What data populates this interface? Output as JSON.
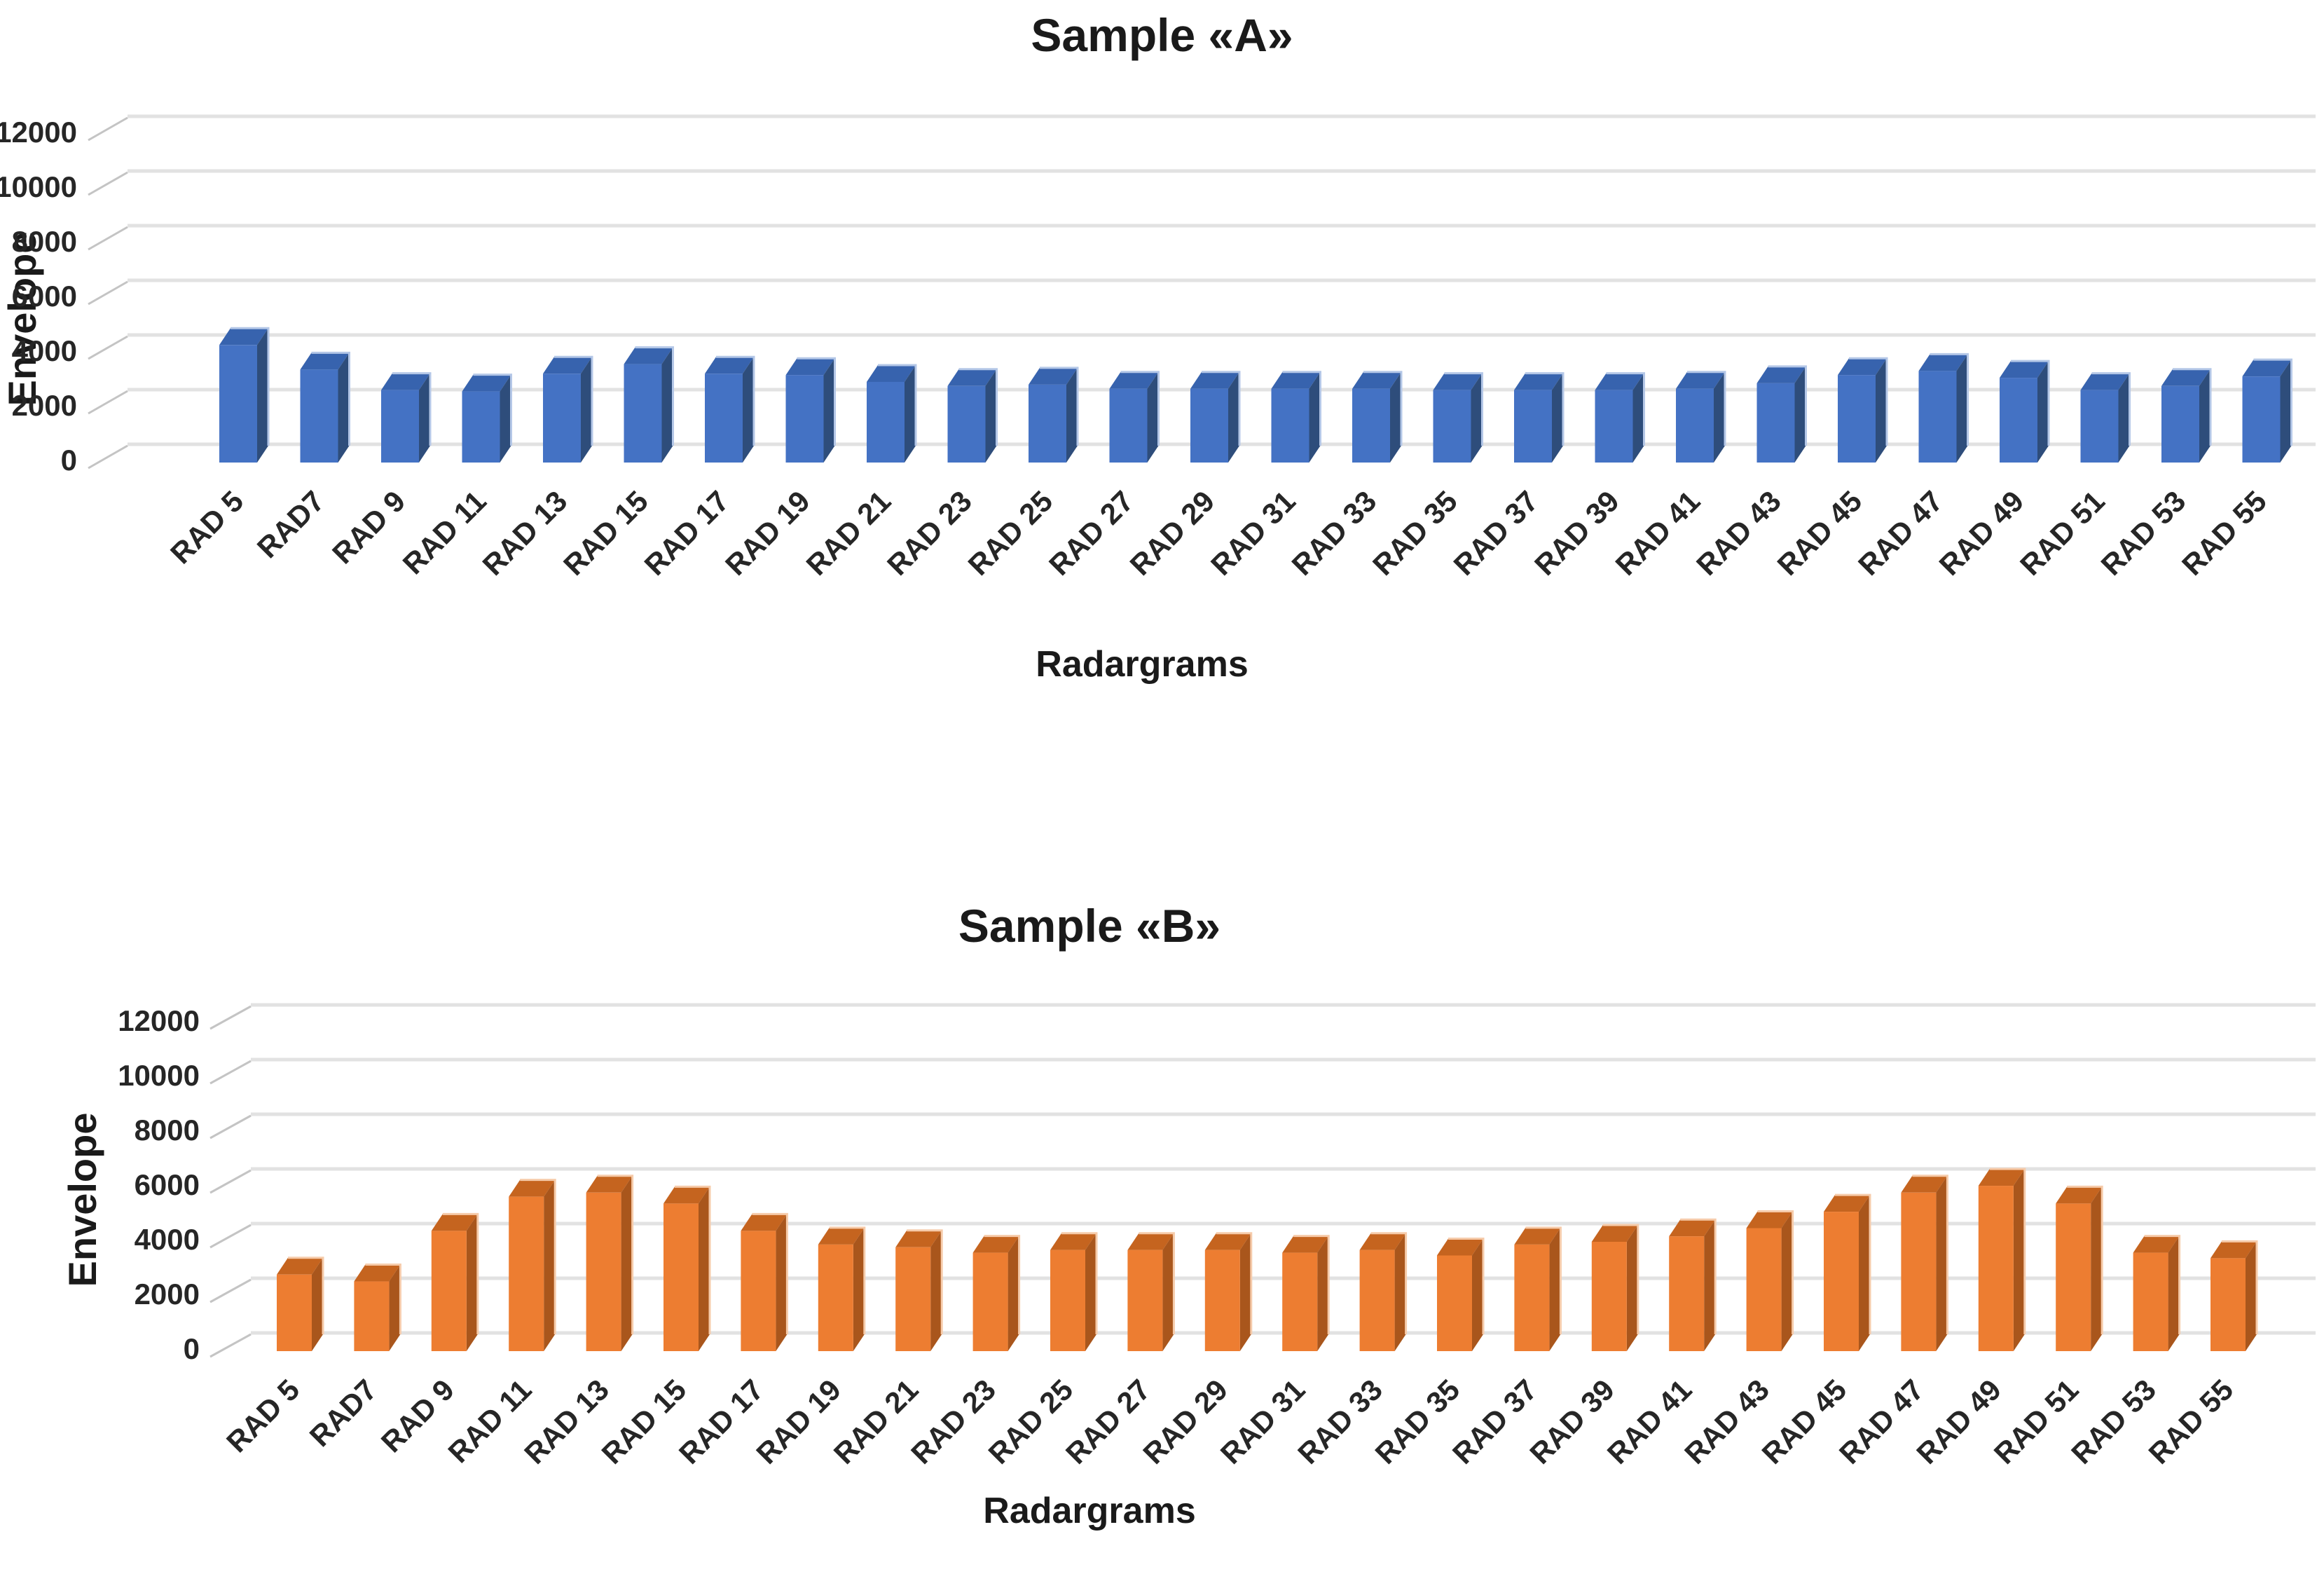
{
  "page": {
    "background": "#ffffff"
  },
  "chart_data": [
    {
      "type": "bar",
      "style": "3d-column",
      "title": "Sample «A»",
      "ylabel": "Envelope",
      "xlabel": "Radargrams",
      "ylim": [
        0,
        12000
      ],
      "ytick_step": 2000,
      "ytick_labels": [
        "12000",
        "10000",
        "8000",
        "6000",
        "4000",
        "2000",
        "0"
      ],
      "grid": true,
      "legend": "none",
      "bar_color": "#4472C4",
      "bar_side_color": "#2E4D7B",
      "bar_top_color": "#3763AE",
      "bar_highlight_color": "#B4C7E7",
      "categories": [
        "RAD 5",
        "RAD7",
        "RAD 9",
        "RAD 11",
        "RAD 13",
        "RAD 15",
        "RAD 17",
        "RAD 19",
        "RAD 21",
        "RAD 23",
        "RAD 25",
        "RAD 27",
        "RAD 29",
        "RAD 31",
        "RAD 33",
        "RAD 35",
        "RAD 37",
        "RAD 39",
        "RAD 41",
        "RAD 43",
        "RAD 45",
        "RAD 47",
        "RAD 49",
        "RAD 51",
        "RAD 53",
        "RAD 55"
      ],
      "values": [
        4300,
        3400,
        2650,
        2600,
        3250,
        3600,
        3250,
        3200,
        2950,
        2800,
        2850,
        2700,
        2700,
        2700,
        2700,
        2650,
        2650,
        2650,
        2700,
        2900,
        3200,
        3350,
        3100,
        2650,
        2800,
        3150
      ]
    },
    {
      "type": "bar",
      "style": "3d-column",
      "title": "Sample «B»",
      "ylabel": "Envelope",
      "xlabel": "Radargrams",
      "ylim": [
        0,
        12000
      ],
      "ytick_step": 2000,
      "ytick_labels": [
        "12000",
        "10000",
        "8000",
        "6000",
        "4000",
        "2000",
        "0"
      ],
      "grid": true,
      "legend": "none",
      "bar_color": "#ED7D31",
      "bar_side_color": "#A9561C",
      "bar_top_color": "#C5641F",
      "bar_highlight_color": "#F6CBAA",
      "categories": [
        "RAD 5",
        "RAD7",
        "RAD 9",
        "RAD 11",
        "RAD 13",
        "RAD 15",
        "RAD 17",
        "RAD 19",
        "RAD 21",
        "RAD 23",
        "RAD 25",
        "RAD 27",
        "RAD 29",
        "RAD 31",
        "RAD 33",
        "RAD 35",
        "RAD 37",
        "RAD 39",
        "RAD 41",
        "RAD 43",
        "RAD 45",
        "RAD 47",
        "RAD 49",
        "RAD 51",
        "RAD 53",
        "RAD 55"
      ],
      "values": [
        2800,
        2550,
        4400,
        5650,
        5800,
        5400,
        4400,
        3900,
        3800,
        3600,
        3700,
        3700,
        3700,
        3600,
        3700,
        3500,
        3900,
        4000,
        4200,
        4500,
        5100,
        5800,
        6050,
        5400,
        3600,
        3400
      ]
    }
  ]
}
